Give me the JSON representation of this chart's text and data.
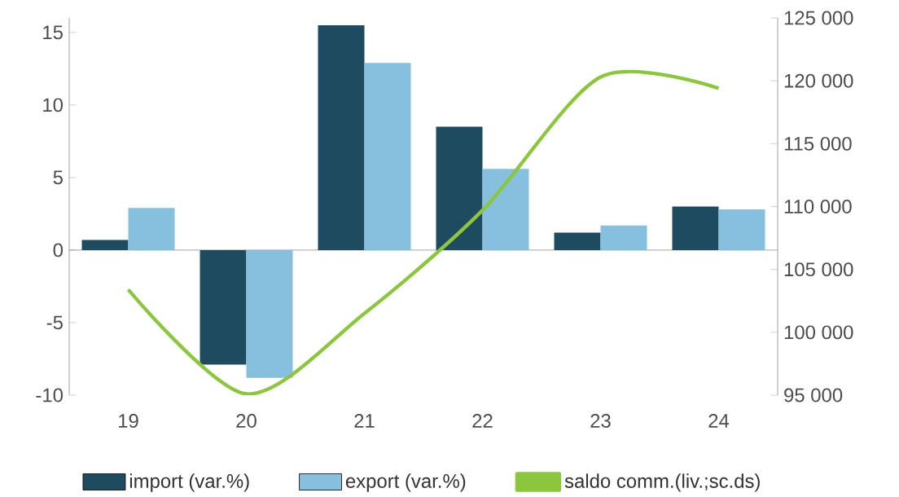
{
  "chart_data": {
    "type": "bar",
    "categories": [
      "19",
      "20",
      "21",
      "22",
      "23",
      "24"
    ],
    "series": [
      {
        "name": "import (var.%)",
        "color": "#1f4b60",
        "values": [
          0.7,
          -7.9,
          15.5,
          8.5,
          1.2,
          3.0
        ]
      },
      {
        "name": "export (var.%)",
        "color": "#86c0de",
        "values": [
          2.9,
          -8.8,
          12.9,
          5.6,
          1.7,
          2.8
        ]
      },
      {
        "name": "saldo comm.(liv.;sc.ds)",
        "type": "line",
        "axis": "y2",
        "color": "#8cc63f",
        "values": [
          103400,
          95100,
          101500,
          109700,
          120300,
          119400
        ]
      }
    ],
    "ylim": [
      -10,
      16
    ],
    "yticks": [
      -10,
      -5,
      0,
      5,
      10,
      15
    ],
    "y2lim": [
      95000,
      125000
    ],
    "y2ticks": [
      {
        "value": 95000,
        "label": "95 000"
      },
      {
        "value": 100000,
        "label": "100 000"
      },
      {
        "value": 105000,
        "label": "105 000"
      },
      {
        "value": 110000,
        "label": "110 000"
      },
      {
        "value": 115000,
        "label": "115 000"
      },
      {
        "value": 120000,
        "label": "120 000"
      },
      {
        "value": 125000,
        "label": "125 000"
      }
    ],
    "legend": "bottom"
  }
}
